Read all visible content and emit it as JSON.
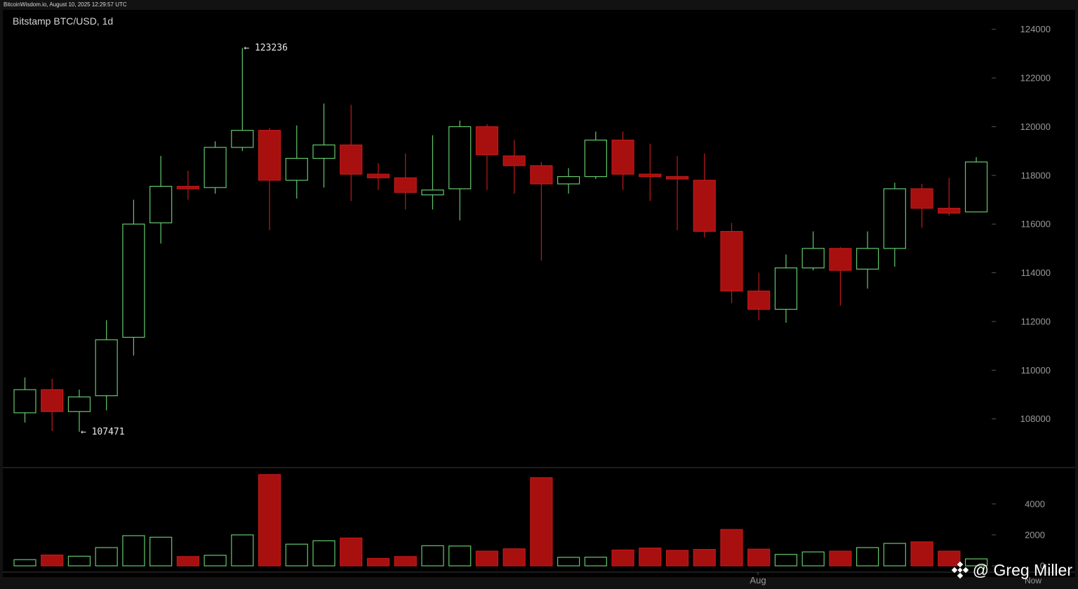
{
  "header": {
    "source_line": "BitcoinWisdom.io, August 10, 2025 12:29:57 UTC",
    "title": "Bitstamp BTC/USD, 1d"
  },
  "watermark": {
    "text": "@ Greg Miller",
    "icon": "binance-diamond-icon"
  },
  "colors": {
    "background": "#000000",
    "frame": "#121212",
    "up": "#63c96b",
    "down": "#c01a1a",
    "down_fill": "#a80f0f",
    "axis_text": "#9a9a9a",
    "separator": "#3a3a3a"
  },
  "chart_data": {
    "type": "candlestick",
    "title": "Bitstamp BTC/USD, 1d",
    "price_axis": {
      "range": [
        106000,
        124800
      ],
      "ticks": [
        108000,
        110000,
        112000,
        114000,
        116000,
        118000,
        120000,
        122000,
        124000
      ]
    },
    "volume_axis": {
      "range": [
        0,
        5900
      ],
      "ticks": [
        0,
        2000,
        4000
      ]
    },
    "x_labels": [
      "Aug",
      "Now"
    ],
    "annotations": [
      {
        "text": "← 123236",
        "value": 123236,
        "index": 8
      },
      {
        "text": "← 107471",
        "value": 107471,
        "index": 2
      }
    ],
    "candles": [
      {
        "o": 108250,
        "h": 109700,
        "l": 107850,
        "c": 109200,
        "v": 400
      },
      {
        "o": 109200,
        "h": 109650,
        "l": 107500,
        "c": 108300,
        "v": 700
      },
      {
        "o": 108300,
        "h": 109200,
        "l": 107471,
        "c": 108900,
        "v": 620
      },
      {
        "o": 108950,
        "h": 112050,
        "l": 108350,
        "c": 111250,
        "v": 1180
      },
      {
        "o": 111350,
        "h": 117000,
        "l": 110600,
        "c": 116000,
        "v": 1950
      },
      {
        "o": 116050,
        "h": 118800,
        "l": 115200,
        "c": 117550,
        "v": 1850
      },
      {
        "o": 117550,
        "h": 118200,
        "l": 117000,
        "c": 117450,
        "v": 600
      },
      {
        "o": 117500,
        "h": 119400,
        "l": 117250,
        "c": 119150,
        "v": 680
      },
      {
        "o": 119150,
        "h": 123236,
        "l": 119000,
        "c": 119850,
        "v": 2000
      },
      {
        "o": 119850,
        "h": 119950,
        "l": 115750,
        "c": 117800,
        "v": 5900
      },
      {
        "o": 117800,
        "h": 120050,
        "l": 117050,
        "c": 118700,
        "v": 1400
      },
      {
        "o": 118700,
        "h": 120950,
        "l": 117500,
        "c": 119250,
        "v": 1620
      },
      {
        "o": 119250,
        "h": 120900,
        "l": 116950,
        "c": 118050,
        "v": 1800
      },
      {
        "o": 118050,
        "h": 118500,
        "l": 117400,
        "c": 117900,
        "v": 480
      },
      {
        "o": 117900,
        "h": 118900,
        "l": 116600,
        "c": 117300,
        "v": 600
      },
      {
        "o": 117200,
        "h": 119650,
        "l": 116600,
        "c": 117400,
        "v": 1300
      },
      {
        "o": 117450,
        "h": 120250,
        "l": 116150,
        "c": 120000,
        "v": 1280
      },
      {
        "o": 120000,
        "h": 120100,
        "l": 117400,
        "c": 118850,
        "v": 950
      },
      {
        "o": 118800,
        "h": 119450,
        "l": 117250,
        "c": 118400,
        "v": 1100
      },
      {
        "o": 118400,
        "h": 118550,
        "l": 114500,
        "c": 117650,
        "v": 5700
      },
      {
        "o": 117650,
        "h": 118300,
        "l": 117250,
        "c": 117950,
        "v": 550
      },
      {
        "o": 117950,
        "h": 119800,
        "l": 117850,
        "c": 119450,
        "v": 560
      },
      {
        "o": 119450,
        "h": 119800,
        "l": 117400,
        "c": 118050,
        "v": 1020
      },
      {
        "o": 118050,
        "h": 119300,
        "l": 116950,
        "c": 117950,
        "v": 1150
      },
      {
        "o": 117950,
        "h": 118800,
        "l": 115750,
        "c": 117850,
        "v": 1000
      },
      {
        "o": 117800,
        "h": 118900,
        "l": 115450,
        "c": 115700,
        "v": 1060
      },
      {
        "o": 115700,
        "h": 116050,
        "l": 112750,
        "c": 113250,
        "v": 2350
      },
      {
        "o": 113250,
        "h": 114000,
        "l": 112050,
        "c": 112500,
        "v": 1080
      },
      {
        "o": 112500,
        "h": 114750,
        "l": 111950,
        "c": 114200,
        "v": 740
      },
      {
        "o": 114200,
        "h": 115700,
        "l": 114100,
        "c": 115000,
        "v": 900
      },
      {
        "o": 115000,
        "h": 115050,
        "l": 112650,
        "c": 114100,
        "v": 950
      },
      {
        "o": 114150,
        "h": 115700,
        "l": 113350,
        "c": 115000,
        "v": 1180
      },
      {
        "o": 115000,
        "h": 117700,
        "l": 114250,
        "c": 117450,
        "v": 1450
      },
      {
        "o": 117450,
        "h": 117650,
        "l": 115850,
        "c": 116650,
        "v": 1550
      },
      {
        "o": 116650,
        "h": 117900,
        "l": 116350,
        "c": 116450,
        "v": 950
      },
      {
        "o": 116500,
        "h": 118750,
        "l": 116500,
        "c": 118550,
        "v": 450
      }
    ]
  }
}
